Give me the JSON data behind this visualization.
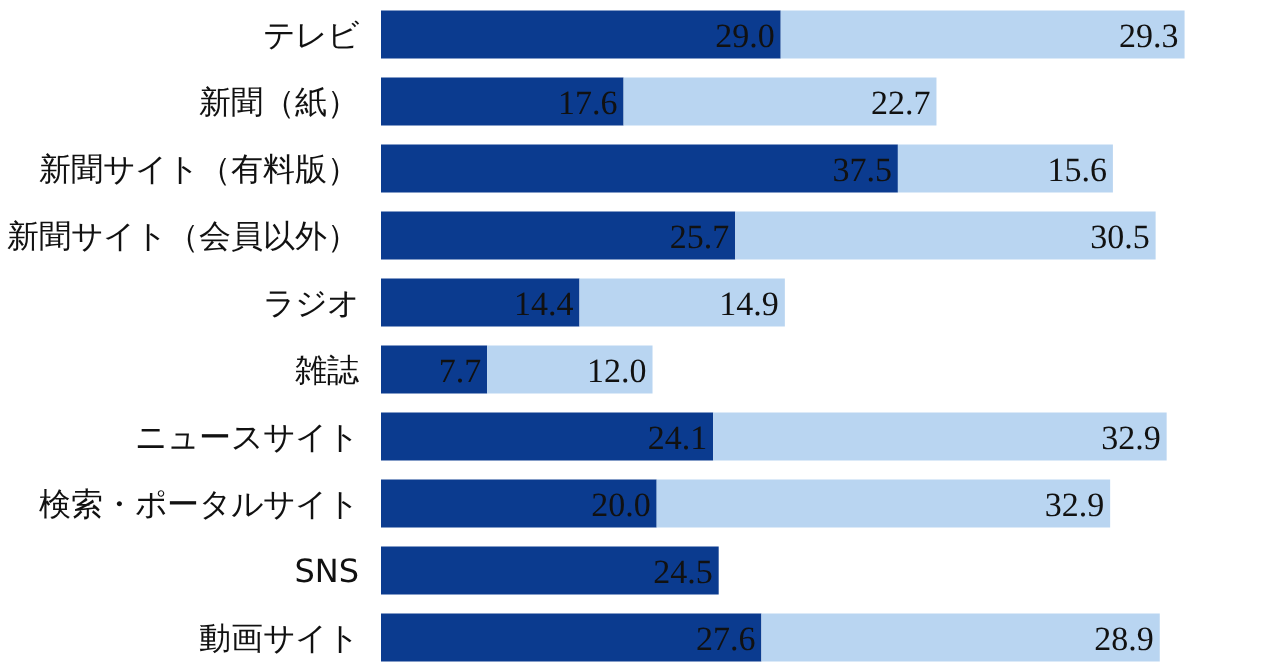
{
  "chart_data": {
    "type": "bar",
    "orientation": "horizontal",
    "stacked": true,
    "categories": [
      "テレビ",
      "新聞（紙）",
      "新聞サイト（有料版）",
      "新聞サイト（会員以外）",
      "ラジオ",
      "雑誌",
      "ニュースサイト",
      "検索・ポータルサイト",
      "SNS",
      "動画サイト"
    ],
    "series": [
      {
        "color": "#0b3b8f",
        "values": [
          29.0,
          17.6,
          37.5,
          25.7,
          14.4,
          7.7,
          24.1,
          20.0,
          24.5,
          27.6
        ],
        "value_labels": [
          "29.0",
          "17.6",
          "37.5",
          "25.7",
          "14.4",
          "7.7",
          "24.1",
          "20.0",
          "24.5",
          "27.6"
        ]
      },
      {
        "color": "#b9d5f1",
        "values": [
          29.3,
          22.7,
          15.6,
          30.5,
          14.9,
          12.0,
          32.9,
          32.9,
          null,
          28.9
        ],
        "value_labels": [
          "29.3",
          "22.7",
          "15.6",
          "30.5",
          "14.9",
          "12.0",
          "32.9",
          "32.9",
          null,
          "28.9"
        ]
      }
    ]
  }
}
